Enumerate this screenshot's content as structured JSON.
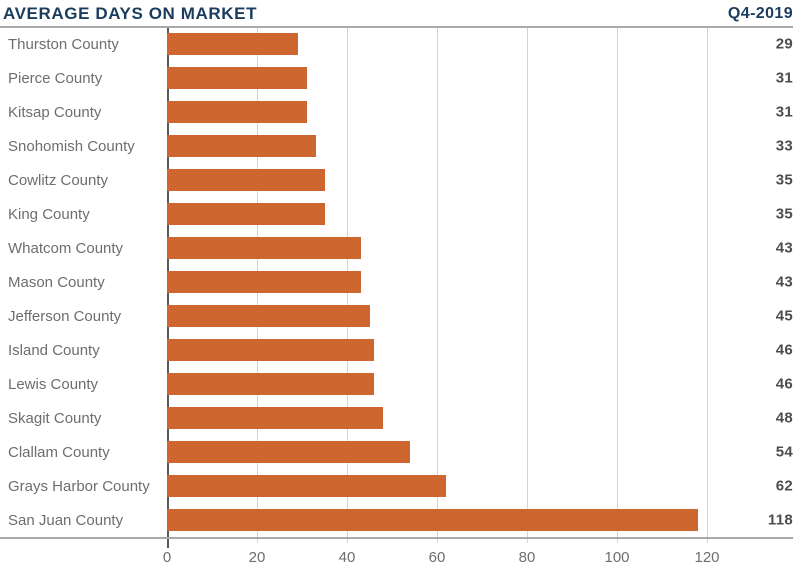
{
  "header": {
    "title": "AVERAGE DAYS ON MARKET",
    "period": "Q4-2019"
  },
  "chart_data": {
    "type": "bar",
    "orientation": "horizontal",
    "title": "AVERAGE DAYS ON MARKET",
    "subtitle": "Q4-2019",
    "categories": [
      "Thurston County",
      "Pierce County",
      "Kitsap County",
      "Snohomish County",
      "Cowlitz County",
      "King County",
      "Whatcom County",
      "Mason County",
      "Jefferson County",
      "Island County",
      "Lewis County",
      "Skagit County",
      "Clallam County",
      "Grays Harbor County",
      "San Juan County"
    ],
    "values": [
      29,
      31,
      31,
      33,
      35,
      35,
      43,
      43,
      45,
      46,
      46,
      48,
      54,
      62,
      118
    ],
    "xlabel": "",
    "ylabel": "",
    "xticks": [
      0,
      20,
      40,
      60,
      80,
      100,
      120
    ],
    "xlim": [
      0,
      134
    ],
    "grid": "vertical",
    "legend": "none",
    "value_labels": "right-aligned"
  },
  "colors": {
    "title_navy": "#1C3C5E",
    "bar_orange": "#CE662F",
    "category_label_gray": "#6D6E71",
    "value_label_dark": "#4D4D4F",
    "gridline_light": "#D1D3D4",
    "axis_zero_dark": "#58595B",
    "rule_gray": "#A7A9AC",
    "background": "#FFFFFF"
  }
}
